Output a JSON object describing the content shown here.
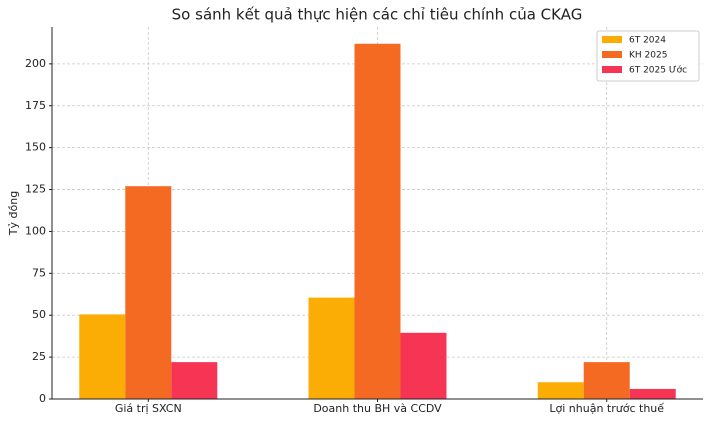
{
  "chart_data": {
    "type": "bar",
    "title": "So sánh kết quả thực hiện các chỉ tiêu chính của CKAG",
    "y_label": "Tỷ đồng",
    "categories": [
      "Giá trị SXCN",
      "Doanh thu BH và CCDV",
      "Lợi nhuận trước thuế"
    ],
    "series": [
      {
        "name": "6T 2024",
        "color": "#fcad05",
        "values": [
          50.5,
          60.5,
          10
        ]
      },
      {
        "name": "KH 2025",
        "color": "#f46a22",
        "values": [
          127,
          212,
          22
        ]
      },
      {
        "name": "6T 2025 Ước",
        "color": "#f53553",
        "values": [
          22,
          39.5,
          6
        ]
      }
    ],
    "ylim": [
      0,
      222
    ],
    "yticks": [
      0,
      25,
      50,
      75,
      100,
      125,
      150,
      175,
      200
    ],
    "grid": true,
    "legend": "upper right"
  }
}
